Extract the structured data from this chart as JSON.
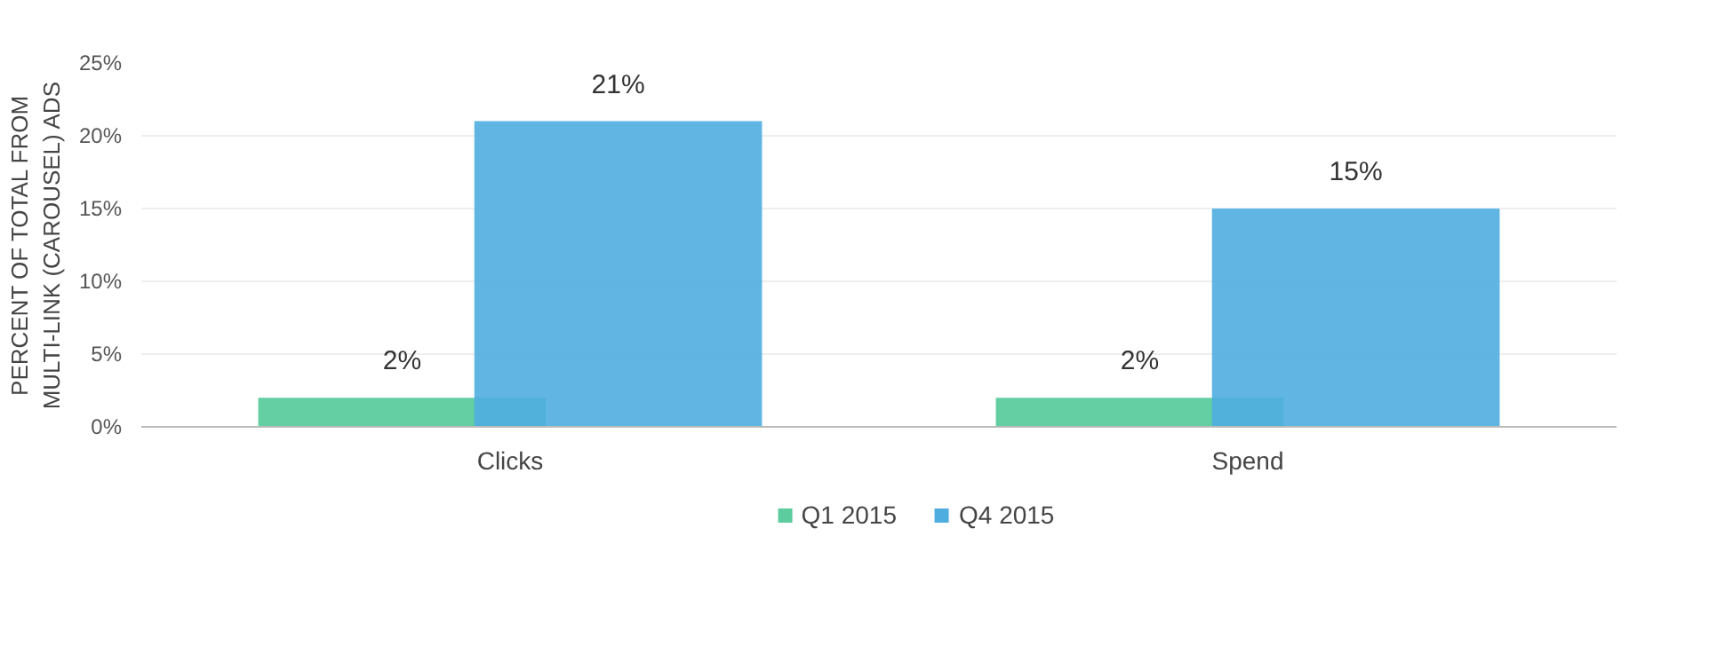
{
  "chart_data": {
    "type": "bar",
    "ylabel": "PERCENT OF TOTAL FROM MULTI-LINK (CAROUSEL) ADS",
    "categories": [
      "Clicks",
      "Spend"
    ],
    "series": [
      {
        "name": "Q1 2015",
        "color": "#5ccc9e",
        "values": [
          2,
          2
        ],
        "value_labels": [
          "2%",
          "2%"
        ]
      },
      {
        "name": "Q4 2015",
        "color": "#4fade0",
        "values": [
          21,
          15
        ],
        "value_labels": [
          "21%",
          "15%"
        ]
      }
    ],
    "ylim": [
      0,
      25
    ],
    "yticks": [
      {
        "value": 0,
        "label": "0%"
      },
      {
        "value": 5,
        "label": "5%"
      },
      {
        "value": 10,
        "label": "10%"
      },
      {
        "value": 15,
        "label": "15%"
      },
      {
        "value": 20,
        "label": "20%"
      },
      {
        "value": 25,
        "label": "25%"
      }
    ],
    "grid": "y",
    "legend": "bottom"
  }
}
